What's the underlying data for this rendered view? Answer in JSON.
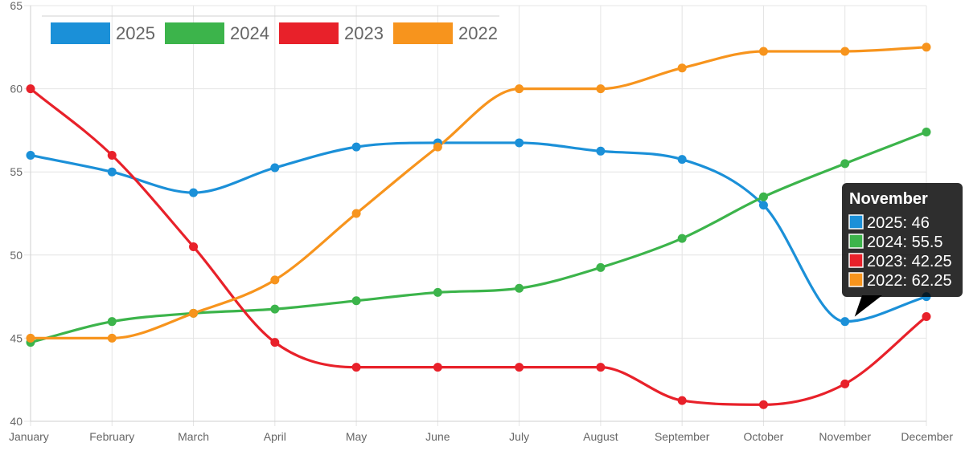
{
  "chart_data": {
    "type": "line",
    "title": "",
    "xlabel": "",
    "ylabel": "",
    "categories": [
      "January",
      "February",
      "March",
      "April",
      "May",
      "June",
      "July",
      "August",
      "September",
      "October",
      "November",
      "December"
    ],
    "ylim": [
      40,
      65
    ],
    "yticks": [
      40,
      45,
      50,
      55,
      60,
      65
    ],
    "grid": true,
    "legend_position": "top-left",
    "series": [
      {
        "name": "2025",
        "color": "#1b90d8",
        "values": [
          56,
          55,
          53.75,
          55.25,
          56.5,
          56.75,
          56.75,
          56.25,
          55.75,
          53,
          46,
          47.5
        ]
      },
      {
        "name": "2024",
        "color": "#3cb44b",
        "values": [
          44.75,
          46,
          46.5,
          46.75,
          47.25,
          47.75,
          48,
          49.25,
          51,
          53.5,
          55.5,
          57.4
        ]
      },
      {
        "name": "2023",
        "color": "#e8212a",
        "values": [
          60,
          56,
          50.5,
          44.75,
          43.25,
          43.25,
          43.25,
          43.25,
          41.25,
          41,
          42.25,
          46.3
        ]
      },
      {
        "name": "2022",
        "color": "#f7941d",
        "values": [
          45,
          45,
          46.5,
          48.5,
          52.5,
          56.5,
          60,
          60,
          61.25,
          62.25,
          62.25,
          62.5
        ]
      }
    ],
    "tooltip": {
      "title": "November",
      "category_index": 10,
      "anchor_series": "2025",
      "lines": [
        "2025: 46",
        "2024: 55.5",
        "2023: 42.25",
        "2022: 62.25"
      ]
    }
  }
}
